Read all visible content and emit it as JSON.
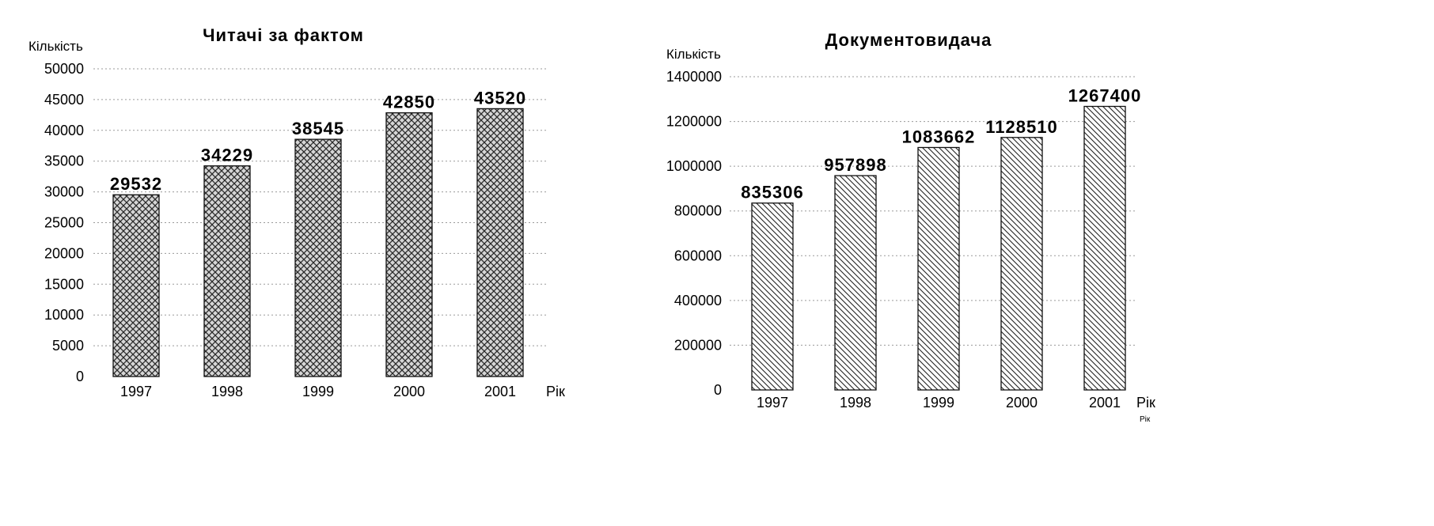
{
  "chart_data": [
    {
      "type": "bar",
      "title": "Читачі за фактом",
      "ylabel": "Кількість",
      "xlabel": "Рік",
      "categories": [
        "1997",
        "1998",
        "1999",
        "2000",
        "2001"
      ],
      "values": [
        29532,
        34229,
        38545,
        42850,
        43520
      ],
      "value_labels": [
        "29532",
        "34229",
        "38545",
        "42850",
        "43520"
      ],
      "ylim": [
        0,
        50000
      ],
      "yticks": [
        "0",
        "5000",
        "10000",
        "15000",
        "20000",
        "25000",
        "30000",
        "35000",
        "40000",
        "45000",
        "50000"
      ],
      "grid": true,
      "pattern": "crosshatch"
    },
    {
      "type": "bar",
      "title": "Документовидача",
      "ylabel": "Кількість",
      "xlabel": "Рік",
      "xlabel_secondary": "Рік",
      "categories": [
        "1997",
        "1998",
        "1999",
        "2000",
        "2001"
      ],
      "values": [
        835306,
        957898,
        1083662,
        1128510,
        1267400
      ],
      "value_labels": [
        "835306",
        "957898",
        "1083662",
        "1128510",
        "1267400"
      ],
      "ylim": [
        0,
        1400000
      ],
      "yticks": [
        "0",
        "200000",
        "400000",
        "600000",
        "800000",
        "1000000",
        "1200000",
        "1400000"
      ],
      "grid": true,
      "pattern": "diagonal"
    }
  ]
}
